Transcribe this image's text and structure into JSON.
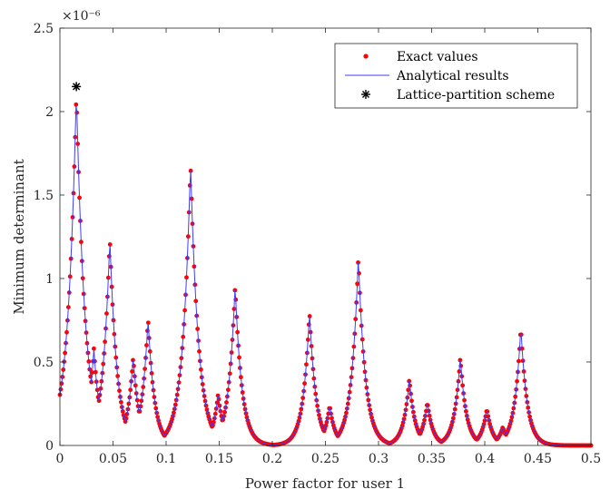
{
  "chart_data": {
    "type": "line",
    "xlabel": "Power factor for user 1",
    "ylabel": "Minimum determinant",
    "exponent": "×10⁻⁶",
    "xlim": [
      0,
      0.5
    ],
    "ylim": [
      0,
      2.5
    ],
    "xticks": [
      "0",
      "0.05",
      "0.1",
      "0.15",
      "0.2",
      "0.25",
      "0.3",
      "0.35",
      "0.4",
      "0.45",
      "0.5"
    ],
    "yticks": [
      "0",
      "0.5",
      "1",
      "1.5",
      "2",
      "2.5"
    ],
    "grid": false,
    "legend_position": "top-right",
    "legend": [
      "Exact values",
      "Analytical results",
      "Lattice-partition scheme"
    ],
    "colors": {
      "exact": "#ff0000",
      "analytical": "#3c3cff",
      "lattice": "#000000"
    },
    "peaks": [
      {
        "x": 0.0155,
        "y": 2.12
      },
      {
        "x": 0.023,
        "y": 0.28
      },
      {
        "x": 0.032,
        "y": 0.58
      },
      {
        "x": 0.047,
        "y": 1.24
      },
      {
        "x": 0.069,
        "y": 0.53
      },
      {
        "x": 0.083,
        "y": 0.76
      },
      {
        "x": 0.123,
        "y": 1.69
      },
      {
        "x": 0.149,
        "y": 0.31
      },
      {
        "x": 0.165,
        "y": 0.96
      },
      {
        "x": 0.235,
        "y": 0.8
      },
      {
        "x": 0.254,
        "y": 0.24
      },
      {
        "x": 0.281,
        "y": 1.13
      },
      {
        "x": 0.329,
        "y": 0.4
      },
      {
        "x": 0.346,
        "y": 0.26
      },
      {
        "x": 0.377,
        "y": 0.53
      },
      {
        "x": 0.402,
        "y": 0.22
      },
      {
        "x": 0.417,
        "y": 0.11
      },
      {
        "x": 0.434,
        "y": 0.71
      }
    ],
    "lattice_point": {
      "x": 0.0155,
      "y": 2.15
    }
  }
}
